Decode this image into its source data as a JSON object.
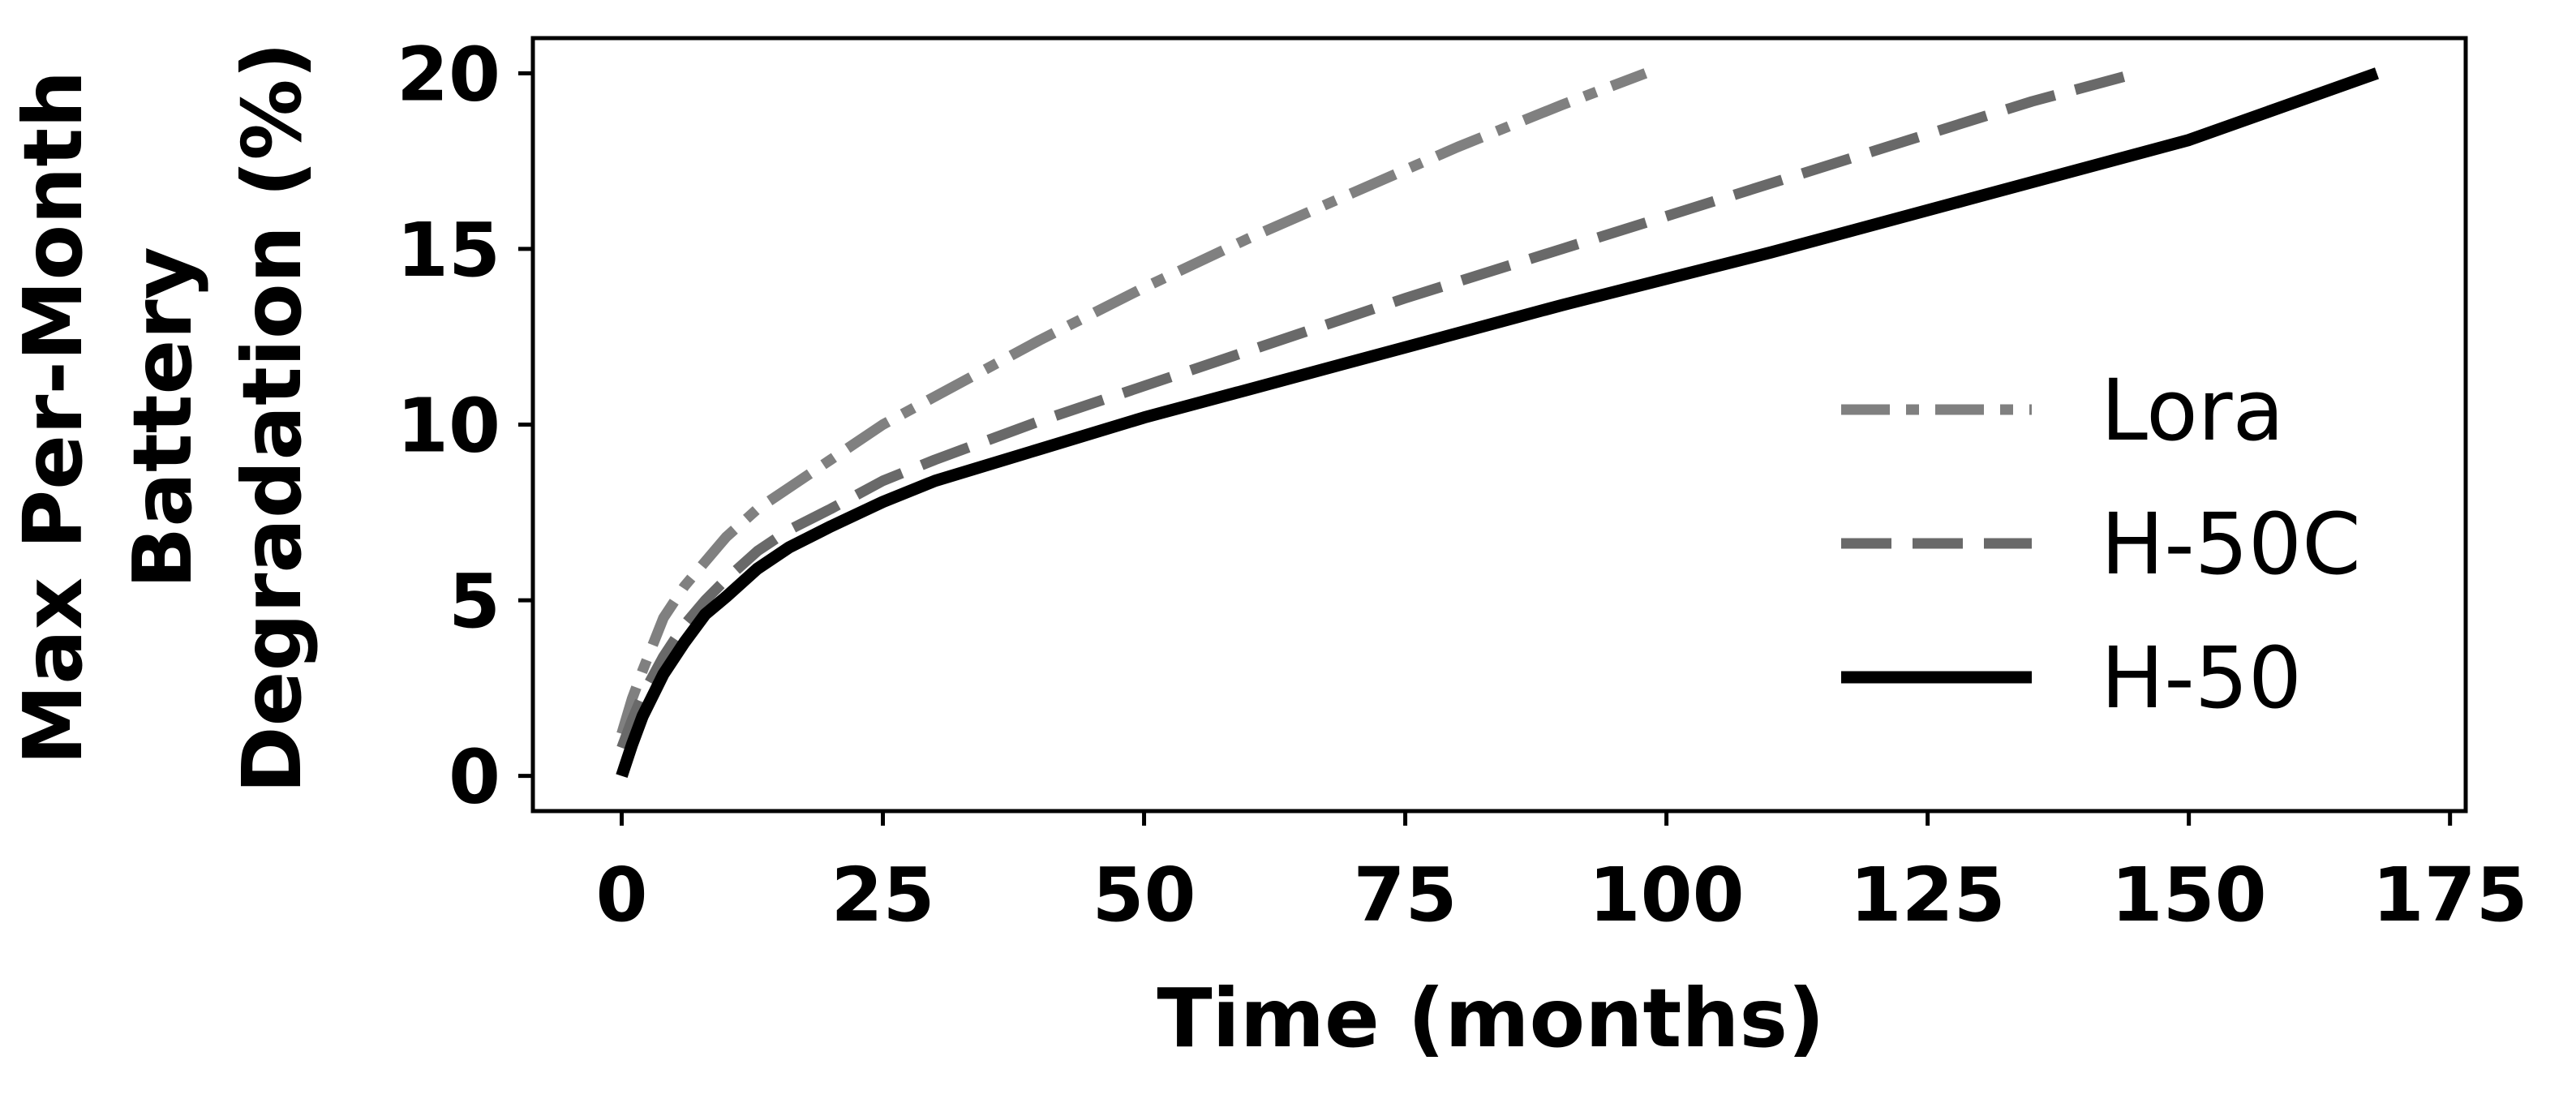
{
  "chart_data": {
    "type": "line",
    "title": "",
    "xlabel": "Time (months)",
    "ylabel_lines": [
      "Max Per-Month",
      "Battery",
      "Degradation (%)"
    ],
    "xlim": [
      -8.5,
      176.5
    ],
    "ylim": [
      -1.0,
      21.0
    ],
    "xticks": [
      0,
      25,
      50,
      75,
      100,
      125,
      150,
      175
    ],
    "yticks": [
      0,
      5,
      10,
      15,
      20
    ],
    "grid": false,
    "legend_position": "center-right",
    "series": [
      {
        "name": "Lora",
        "color": "#808080",
        "style": "dashdot",
        "x": [
          0,
          1,
          2,
          4,
          6,
          8,
          10,
          13,
          16,
          20,
          25,
          30,
          40,
          50,
          60,
          70,
          80,
          90,
          98
        ],
        "y": [
          1.2,
          2.2,
          3.0,
          4.5,
          5.4,
          6.1,
          6.8,
          7.6,
          8.2,
          9.0,
          10.0,
          10.8,
          12.4,
          13.9,
          15.3,
          16.6,
          17.9,
          19.1,
          20.0
        ]
      },
      {
        "name": "H-50C",
        "color": "#696969",
        "style": "dashed",
        "x": [
          0,
          1,
          2,
          4,
          6,
          8,
          10,
          13,
          16,
          20,
          25,
          30,
          40,
          50,
          60,
          75,
          90,
          105,
          120,
          135,
          145
        ],
        "y": [
          0.8,
          1.6,
          2.3,
          3.4,
          4.3,
          5.0,
          5.6,
          6.4,
          7.0,
          7.6,
          8.4,
          9.0,
          10.1,
          11.1,
          12.1,
          13.6,
          15.0,
          16.4,
          17.8,
          19.2,
          20.0
        ]
      },
      {
        "name": "H-50",
        "color": "#000000",
        "style": "solid",
        "x": [
          0,
          1,
          2,
          4,
          6,
          8,
          10,
          13,
          16,
          20,
          25,
          30,
          40,
          50,
          60,
          75,
          90,
          110,
          130,
          150,
          168
        ],
        "y": [
          0.0,
          0.9,
          1.7,
          2.9,
          3.8,
          4.6,
          5.1,
          5.9,
          6.5,
          7.1,
          7.8,
          8.4,
          9.3,
          10.2,
          11.0,
          12.2,
          13.4,
          14.9,
          16.5,
          18.1,
          20.0
        ]
      }
    ]
  }
}
